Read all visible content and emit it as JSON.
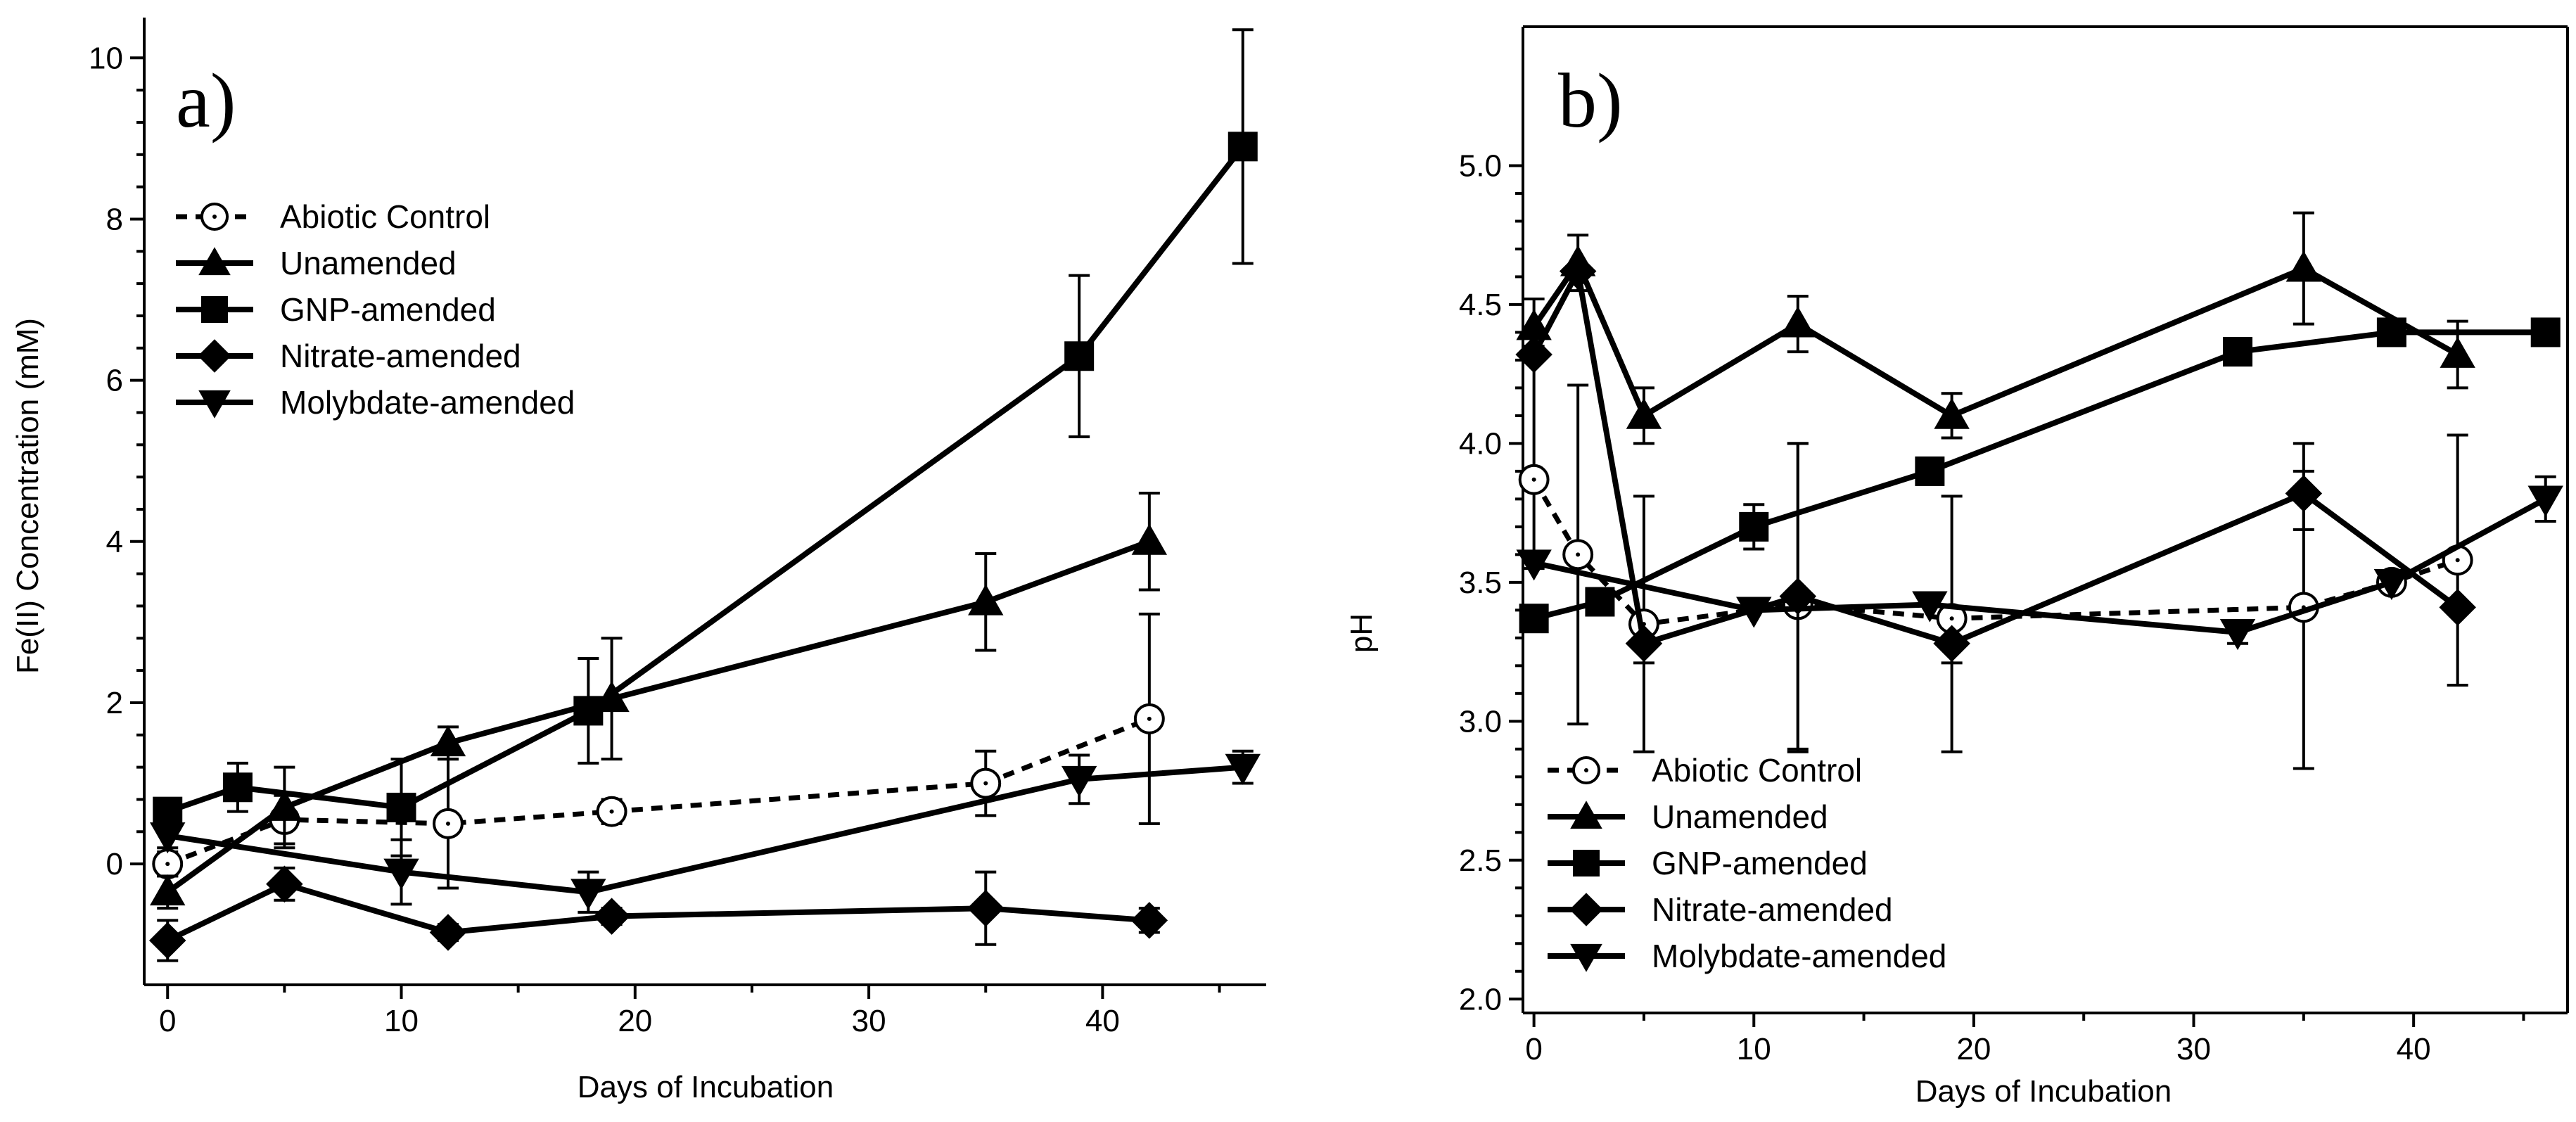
{
  "chart_data": [
    {
      "type": "line",
      "panel_label": "a)",
      "xlabel": "Days of Incubation",
      "ylabel": "Fe(II) Concentration (mM)",
      "xlim": [
        -1,
        47
      ],
      "ylim": [
        -1.5,
        10.5
      ],
      "xticks": [
        0,
        10,
        20,
        30,
        40
      ],
      "yticks": [
        0,
        2,
        4,
        6,
        8,
        10
      ],
      "legend_position": "upper-left",
      "series": [
        {
          "name": "Abiotic Control",
          "marker": "circle-open",
          "dashed": true,
          "x": [
            0,
            5,
            12,
            19,
            35,
            42
          ],
          "y": [
            0.0,
            0.55,
            0.5,
            0.65,
            1.0,
            1.8
          ],
          "err": [
            0.15,
            0.3,
            0.8,
            0.15,
            0.4,
            1.3
          ]
        },
        {
          "name": "Unamended",
          "marker": "triangle-up",
          "dashed": false,
          "x": [
            0,
            5,
            12,
            19,
            35,
            42
          ],
          "y": [
            -0.35,
            0.7,
            1.5,
            2.05,
            3.25,
            4.0
          ],
          "err": [
            0.2,
            0.5,
            0.2,
            0.75,
            0.6,
            0.6
          ]
        },
        {
          "name": "GNP-amended",
          "marker": "square",
          "dashed": false,
          "x": [
            0,
            3,
            10,
            18,
            39,
            46
          ],
          "y": [
            0.65,
            0.95,
            0.7,
            1.9,
            6.3,
            8.9
          ],
          "err": [
            0.15,
            0.3,
            0.6,
            0.65,
            1.0,
            1.45
          ]
        },
        {
          "name": "Nitrate-amended",
          "marker": "diamond",
          "dashed": false,
          "x": [
            0,
            5,
            12,
            19,
            35,
            42
          ],
          "y": [
            -0.95,
            -0.25,
            -0.85,
            -0.65,
            -0.55,
            -0.7
          ],
          "err": [
            0.25,
            0.2,
            0.1,
            0.1,
            0.45,
            0.15
          ]
        },
        {
          "name": "Molybdate-amended",
          "marker": "triangle-down",
          "dashed": false,
          "x": [
            0,
            10,
            18,
            39,
            46
          ],
          "y": [
            0.35,
            -0.1,
            -0.35,
            1.05,
            1.2
          ],
          "err": [
            0.15,
            0.4,
            0.25,
            0.3,
            0.2
          ]
        }
      ]
    },
    {
      "type": "line",
      "panel_label": "b)",
      "xlabel": "Days of Incubation",
      "ylabel": "pH",
      "xlim": [
        -0.5,
        47
      ],
      "ylim": [
        1.95,
        5.5
      ],
      "xticks": [
        0,
        10,
        20,
        30,
        40
      ],
      "yticks": [
        2.0,
        2.5,
        3.0,
        3.5,
        4.0,
        4.5,
        5.0
      ],
      "ytick_labels": [
        "2.0",
        "2.5",
        "3.0",
        "3.5",
        "4.0",
        "4.5",
        "5.0"
      ],
      "legend_position": "lower-left",
      "series": [
        {
          "name": "Abiotic Control",
          "marker": "circle-open",
          "dashed": true,
          "x": [
            0,
            2,
            5,
            12,
            19,
            35,
            39,
            42
          ],
          "y": [
            3.87,
            3.6,
            3.35,
            3.42,
            3.37,
            3.41,
            3.5,
            3.58
          ],
          "err": [
            0.0,
            0.0,
            0.0,
            0.0,
            0.0,
            0.0,
            0.0,
            0.0
          ]
        },
        {
          "name": "Unamended",
          "marker": "triangle-up",
          "dashed": false,
          "x": [
            0,
            2,
            5,
            12,
            19,
            35,
            42
          ],
          "y": [
            4.42,
            4.65,
            4.1,
            4.43,
            4.1,
            4.63,
            4.32
          ],
          "err": [
            0.1,
            0.1,
            0.1,
            0.1,
            0.08,
            0.2,
            0.12
          ]
        },
        {
          "name": "GNP-amended",
          "marker": "square",
          "dashed": false,
          "x": [
            0,
            3,
            10,
            18,
            32,
            39,
            46
          ],
          "y": [
            3.37,
            3.43,
            3.7,
            3.9,
            4.33,
            4.4,
            4.4
          ],
          "err": [
            0.0,
            0.0,
            0.08,
            0.0,
            0.0,
            0.0,
            0.0
          ]
        },
        {
          "name": "Nitrate-amended",
          "marker": "diamond",
          "dashed": false,
          "x": [
            0,
            2,
            5,
            12,
            19,
            35,
            42
          ],
          "y": [
            4.32,
            4.62,
            3.28,
            3.45,
            3.28,
            3.82,
            3.41
          ],
          "err": [
            0.0,
            0.0,
            0.0,
            0.55,
            0.0,
            0.0,
            0.0
          ]
        },
        {
          "name": "Molybdate-amended",
          "marker": "triangle-down",
          "dashed": false,
          "x": [
            0,
            10,
            18,
            32,
            39,
            46
          ],
          "y": [
            3.57,
            3.4,
            3.42,
            3.32,
            3.5,
            3.8
          ],
          "err": [
            0.0,
            0.0,
            0.0,
            0.04,
            0.0,
            0.08
          ]
        }
      ],
      "extra_errorbars": [
        {
          "x": 0,
          "y": 3.57,
          "lo": 3.55,
          "hi": 4.35
        },
        {
          "x": 2,
          "y": 4.62,
          "lo": 2.99,
          "hi": 4.21
        },
        {
          "x": 5,
          "y": 3.35,
          "lo": 2.89,
          "hi": 3.81
        },
        {
          "x": 12,
          "y": 3.45,
          "lo": 2.89,
          "hi": 4.0
        },
        {
          "x": 19,
          "y": 3.37,
          "lo": 2.89,
          "hi": 3.81
        },
        {
          "x": 35,
          "y": 3.41,
          "lo": 2.83,
          "hi": 4.0
        },
        {
          "x": 42,
          "y": 3.58,
          "lo": 3.13,
          "hi": 4.03
        },
        {
          "x": 5,
          "y": 3.28,
          "lo": 3.21,
          "hi": 3.35
        },
        {
          "x": 19,
          "y": 3.28,
          "lo": 3.21,
          "hi": 3.35
        },
        {
          "x": 35,
          "y": 3.82,
          "lo": 3.69,
          "hi": 3.9
        }
      ]
    }
  ]
}
